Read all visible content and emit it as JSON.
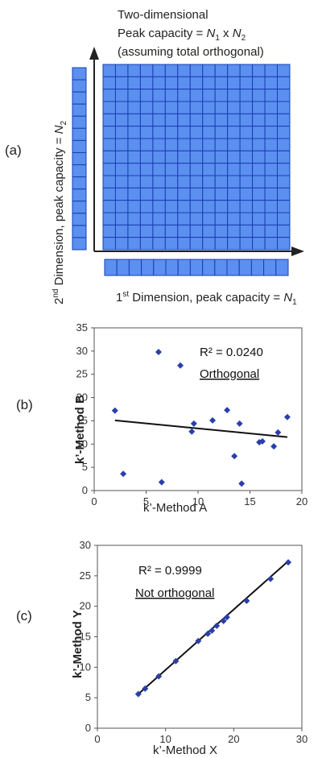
{
  "chart_data": [
    {
      "type": "diagram",
      "panel_label": "(a)",
      "title_lines": [
        "Two-dimensional",
        "Peak capacity = N1 x N2",
        "(assuming total orthogonal)"
      ],
      "title_line2_prefix": "Peak capacity = ",
      "title_line2_n1": "N",
      "title_line2_sub1": "1",
      "title_line2_x": " x ",
      "title_line2_n2": "N",
      "title_line2_sub2": "2",
      "title_line3": "(assuming total orthogonal)",
      "title_line1": "Two-dimensional",
      "y_axis_title_prefix": "2",
      "y_axis_title_sup": "nd",
      "y_axis_title_rest": " Dimension, peak capacity = ",
      "y_axis_title_n": "N",
      "y_axis_title_sub": "2",
      "x_axis_title_prefix": "1",
      "x_axis_title_sup": "st",
      "x_axis_title_rest": " Dimension, peak capacity = ",
      "x_axis_title_n": "N",
      "x_axis_title_sub": "1",
      "grid_rows": 15,
      "grid_cols": 15,
      "color": "#5b8ff0"
    },
    {
      "type": "scatter",
      "panel_label": "(b)",
      "xlabel": "k’-Method A",
      "ylabel": "k’-Method B",
      "xlim": [
        0,
        20
      ],
      "ylim": [
        0,
        35
      ],
      "xticks": [
        0,
        5,
        10,
        15,
        20
      ],
      "yticks": [
        0,
        5,
        10,
        15,
        20,
        25,
        30,
        35
      ],
      "annotation_r2": "R² = 0.0240",
      "annotation_label": "Orthogonal",
      "points": [
        [
          2.0,
          17.2
        ],
        [
          2.8,
          3.6
        ],
        [
          6.2,
          29.8
        ],
        [
          6.5,
          1.8
        ],
        [
          8.3,
          26.9
        ],
        [
          9.4,
          12.7
        ],
        [
          9.6,
          14.4
        ],
        [
          11.4,
          15.1
        ],
        [
          12.8,
          17.3
        ],
        [
          13.5,
          7.4
        ],
        [
          14.0,
          14.4
        ],
        [
          14.2,
          1.5
        ],
        [
          15.9,
          10.4
        ],
        [
          16.2,
          10.6
        ],
        [
          17.3,
          9.5
        ],
        [
          17.7,
          12.5
        ],
        [
          18.6,
          15.8
        ]
      ],
      "trendline": {
        "x": [
          2,
          18.6
        ],
        "y": [
          15.1,
          11.5
        ]
      },
      "marker_color": "#2a3fa8"
    },
    {
      "type": "scatter",
      "panel_label": "(c)",
      "xlabel": "k’-Method X",
      "ylabel": "k’-Method Y",
      "xlim": [
        0,
        30
      ],
      "ylim": [
        0,
        30
      ],
      "xticks": [
        0,
        10,
        20,
        30
      ],
      "yticks": [
        0,
        5,
        10,
        15,
        20,
        25,
        30
      ],
      "annotation_r2": "R² = 0.9999",
      "annotation_label": "Not orthogonal",
      "points": [
        [
          6.0,
          5.6
        ],
        [
          7.0,
          6.5
        ],
        [
          9.0,
          8.5
        ],
        [
          11.5,
          11.0
        ],
        [
          14.8,
          14.3
        ],
        [
          16.2,
          15.5
        ],
        [
          16.8,
          16.0
        ],
        [
          17.5,
          16.8
        ],
        [
          18.5,
          17.6
        ],
        [
          19.0,
          18.2
        ],
        [
          21.9,
          20.9
        ],
        [
          25.4,
          24.5
        ],
        [
          28.0,
          27.2
        ]
      ],
      "trendline": {
        "x": [
          6,
          28
        ],
        "y": [
          5.6,
          27.4
        ]
      },
      "marker_color": "#2a3fa8"
    }
  ]
}
